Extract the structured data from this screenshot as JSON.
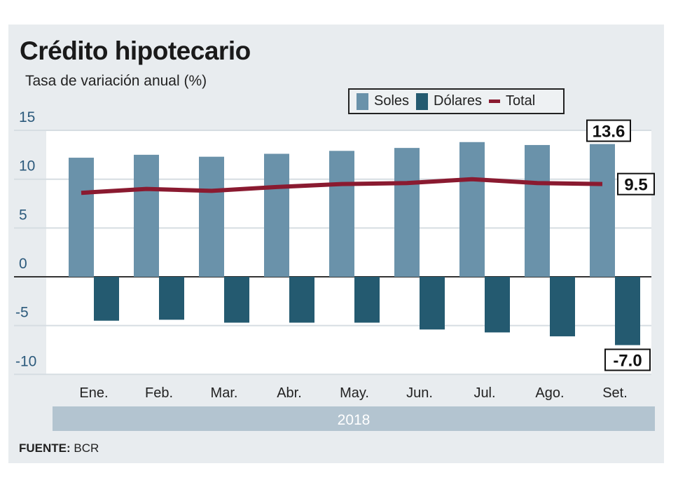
{
  "chart_data": {
    "type": "bar",
    "title": "Crédito hipotecario",
    "subtitle": "Tasa de variación anual (%)",
    "xlabel": "2018",
    "ylabel": "",
    "ylim": [
      -10,
      15
    ],
    "yticks": [
      "15",
      "10",
      "5",
      "0",
      "-5",
      "-10"
    ],
    "ytick_values": [
      15,
      10,
      5,
      0,
      -5,
      -10
    ],
    "categories": [
      "Ene.",
      "Feb.",
      "Mar.",
      "Abr.",
      "May.",
      "Jun.",
      "Jul.",
      "Ago.",
      "Set."
    ],
    "series": [
      {
        "name": "Soles",
        "kind": "bar",
        "color": "#6a92aa",
        "values": [
          12.2,
          12.5,
          12.3,
          12.6,
          12.9,
          13.2,
          13.8,
          13.5,
          13.6
        ]
      },
      {
        "name": "Dólares",
        "kind": "bar",
        "color": "#245a70",
        "values": [
          -4.5,
          -4.4,
          -4.7,
          -4.7,
          -4.7,
          -5.4,
          -5.7,
          -6.1,
          -7.0
        ]
      },
      {
        "name": "Total",
        "kind": "line",
        "color": "#8a1a30",
        "values": [
          8.6,
          9.0,
          8.8,
          9.2,
          9.5,
          9.6,
          10.0,
          9.6,
          9.5
        ]
      }
    ],
    "annotations": [
      "13.6",
      "9.5",
      "-7.0"
    ],
    "grid": true,
    "legend_position": "top-right",
    "year_label": "2018"
  },
  "source": {
    "label": "FUENTE:",
    "value": "BCR"
  }
}
